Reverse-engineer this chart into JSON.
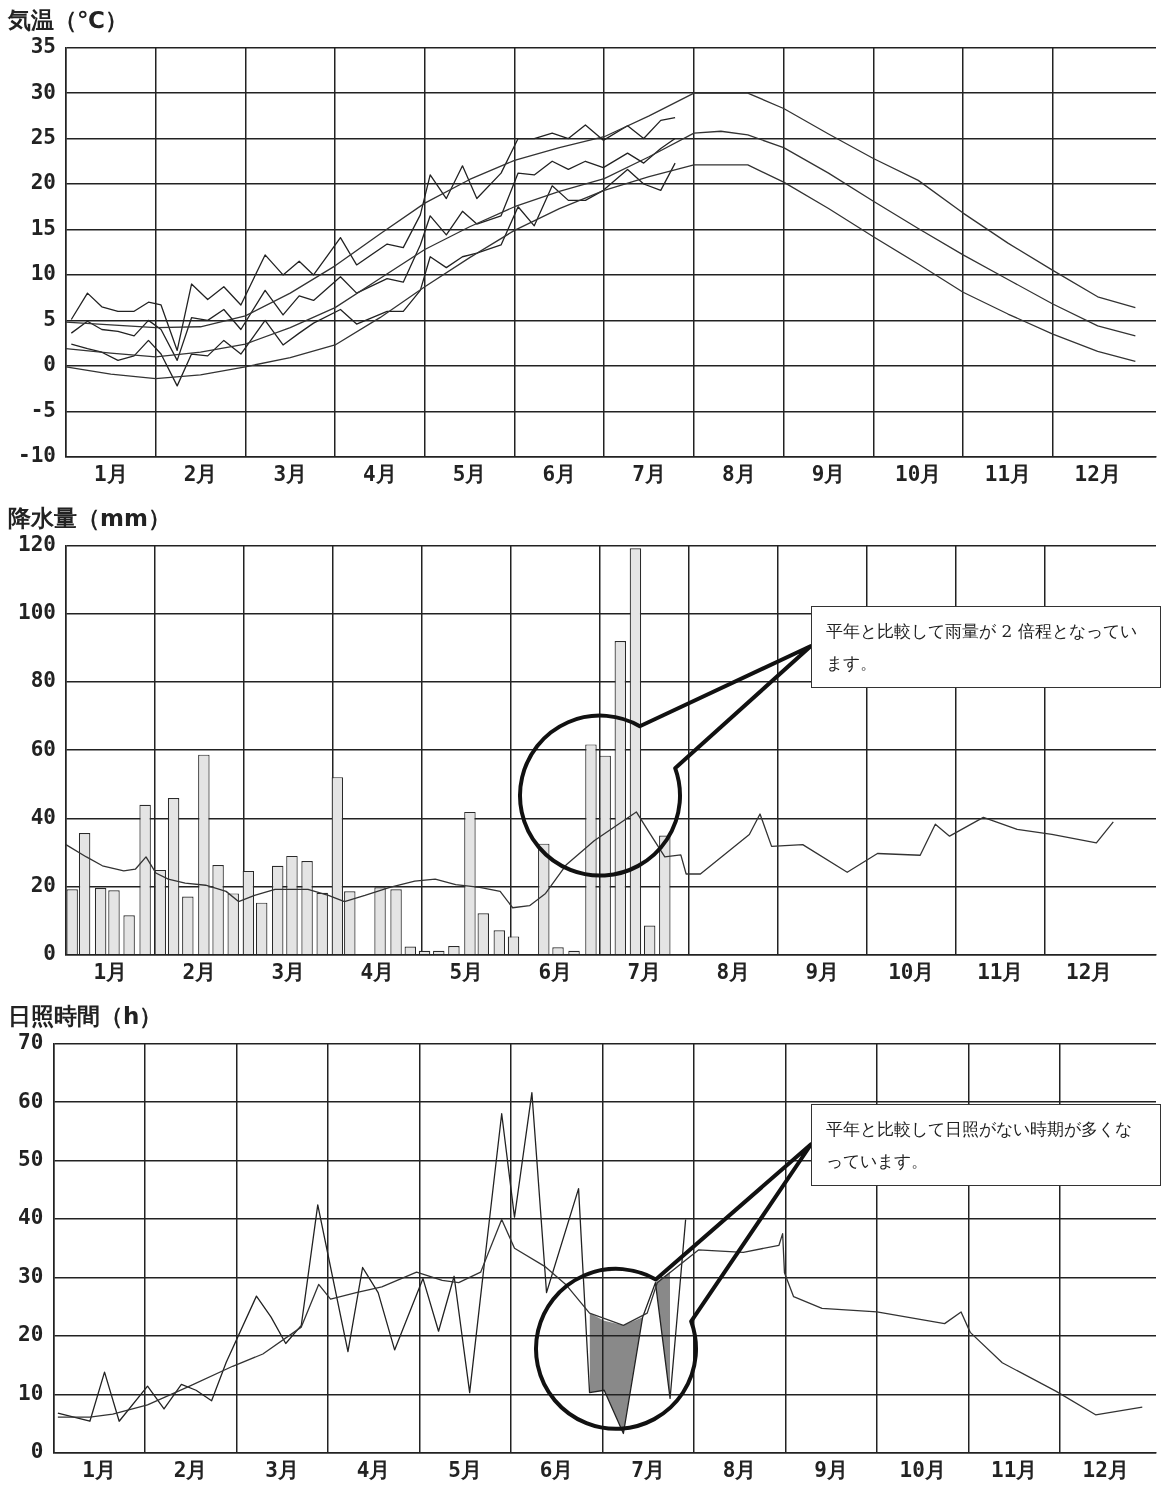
{
  "chart_data": [
    {
      "type": "line",
      "title": "気温（℃）",
      "legend": false,
      "grid": true,
      "marker": "none",
      "xlim": [
        0,
        12.15
      ],
      "xticks": [
        {
          "value": 0,
          "label": null
        },
        {
          "value": 0.5,
          "label": "1月"
        },
        {
          "value": 1,
          "label": null
        },
        {
          "value": 1.5,
          "label": "2月"
        },
        {
          "value": 2,
          "label": null
        },
        {
          "value": 2.5,
          "label": "3月"
        },
        {
          "value": 3,
          "label": null
        },
        {
          "value": 3.5,
          "label": "4月"
        },
        {
          "value": 4,
          "label": null
        },
        {
          "value": 4.5,
          "label": "5月"
        },
        {
          "value": 5,
          "label": null
        },
        {
          "value": 5.5,
          "label": "6月"
        },
        {
          "value": 6,
          "label": null
        },
        {
          "value": 6.5,
          "label": "7月"
        },
        {
          "value": 7,
          "label": null
        },
        {
          "value": 7.5,
          "label": "8月"
        },
        {
          "value": 8,
          "label": null
        },
        {
          "value": 8.5,
          "label": "9月"
        },
        {
          "value": 9,
          "label": null
        },
        {
          "value": 9.5,
          "label": "10月"
        },
        {
          "value": 10,
          "label": null
        },
        {
          "value": 10.5,
          "label": "11月"
        },
        {
          "value": 11,
          "label": null
        },
        {
          "value": 11.5,
          "label": "12月"
        }
      ],
      "ylim": [
        -10,
        35
      ],
      "yticks": [
        -10,
        -5,
        0,
        5,
        10,
        15,
        20,
        25,
        30,
        35
      ],
      "series": [
        {
          "color": "#333333",
          "x": [
            0,
            0.5,
            1,
            1.5,
            2,
            2.5,
            3,
            3.5,
            4,
            4.5,
            5,
            5.5,
            6,
            6.5,
            7,
            7.3,
            7.6,
            8,
            8.5,
            9,
            9.5,
            10,
            10.5,
            11,
            11.5,
            11.92
          ],
          "values": [
            4.8,
            4.5,
            4.2,
            4.3,
            5.5,
            8,
            11,
            14.5,
            17.9,
            20.5,
            22.6,
            24,
            25.2,
            27.5,
            30,
            30,
            30,
            28.3,
            25.5,
            22.8,
            20.4,
            16.8,
            13.5,
            10.5,
            7.6,
            6.4
          ]
        },
        {
          "color": "#333333",
          "x": [
            0,
            0.5,
            1,
            1.5,
            2,
            2.5,
            3,
            3.5,
            4,
            4.5,
            5,
            5.5,
            6,
            6.5,
            7,
            7.3,
            7.6,
            8,
            8.5,
            9,
            9.5,
            10,
            10.5,
            11,
            11.5,
            11.92
          ],
          "values": [
            1.9,
            1.4,
            1.0,
            1.5,
            2.4,
            4.2,
            6.4,
            9.6,
            12.8,
            15.3,
            17.5,
            19.2,
            20.6,
            23,
            25.6,
            25.8,
            25.4,
            24,
            21.2,
            18.1,
            15.1,
            12.2,
            9.5,
            6.8,
            4.4,
            3.3
          ]
        },
        {
          "color": "#333333",
          "x": [
            0,
            0.5,
            1,
            1.5,
            2,
            2.5,
            3,
            3.5,
            4,
            4.5,
            5,
            5.5,
            6,
            6.5,
            7,
            7.3,
            7.6,
            8,
            8.5,
            9,
            9.5,
            10,
            10.5,
            11,
            11.5,
            11.92
          ],
          "values": [
            -0.1,
            -0.9,
            -1.4,
            -1.0,
            -0.1,
            0.9,
            2.3,
            5.3,
            8.7,
            11.9,
            14.9,
            17.3,
            19.3,
            20.8,
            22.1,
            22.1,
            22.1,
            20.2,
            17.3,
            14.2,
            11.2,
            8.1,
            5.7,
            3.5,
            1.6,
            0.5
          ]
        },
        {
          "color": "#222222",
          "x": [
            0.06,
            0.24,
            0.4,
            0.58,
            0.76,
            0.92,
            1.06,
            1.24,
            1.4,
            1.58,
            1.76,
            1.95,
            2.22,
            2.42,
            2.6,
            2.76,
            3.06,
            3.24,
            3.58,
            3.76,
            3.95,
            4.06,
            4.24,
            4.42,
            4.58,
            4.85,
            5.04,
            5.22,
            5.42,
            5.6,
            5.79,
            5.99,
            6.26,
            6.44,
            6.63,
            6.79
          ],
          "values": [
            5.1,
            8.0,
            6.5,
            6.0,
            6.0,
            7.0,
            6.7,
            1.7,
            9.0,
            7.3,
            8.7,
            6.7,
            12.2,
            10.0,
            11.5,
            10.0,
            14.1,
            11.1,
            13.4,
            13.0,
            16.6,
            21.0,
            18.4,
            22.0,
            18.4,
            21.2,
            25.0,
            25.0,
            25.6,
            25.0,
            26.5,
            24.8,
            26.4,
            25.0,
            27.0,
            27.3
          ]
        },
        {
          "color": "#222222",
          "x": [
            0.06,
            0.24,
            0.4,
            0.58,
            0.76,
            0.92,
            1.06,
            1.24,
            1.4,
            1.58,
            1.76,
            1.95,
            2.22,
            2.42,
            2.6,
            2.76,
            3.06,
            3.24,
            3.58,
            3.76,
            3.95,
            4.06,
            4.24,
            4.42,
            4.58,
            4.85,
            5.04,
            5.22,
            5.42,
            5.6,
            5.79,
            5.99,
            6.26,
            6.44,
            6.63,
            6.79
          ],
          "values": [
            3.6,
            4.9,
            4.0,
            3.8,
            3.3,
            5.0,
            4.0,
            0.6,
            5.3,
            5.0,
            6.2,
            4.0,
            8.3,
            5.6,
            7.7,
            7.2,
            9.8,
            8.0,
            9.6,
            9.2,
            13.3,
            16.5,
            14.4,
            17.0,
            15.6,
            16.5,
            21.2,
            21.0,
            22.5,
            21.6,
            22.5,
            21.8,
            23.4,
            22.3,
            23.9,
            25.0
          ]
        },
        {
          "color": "#222222",
          "x": [
            0.06,
            0.24,
            0.4,
            0.58,
            0.76,
            0.92,
            1.06,
            1.24,
            1.4,
            1.58,
            1.76,
            1.95,
            2.22,
            2.42,
            2.6,
            2.76,
            3.06,
            3.24,
            3.58,
            3.76,
            3.95,
            4.06,
            4.24,
            4.42,
            4.58,
            4.85,
            5.04,
            5.22,
            5.42,
            5.6,
            5.79,
            5.99,
            6.26,
            6.44,
            6.63,
            6.79
          ],
          "values": [
            2.4,
            1.9,
            1.5,
            0.6,
            1.1,
            2.8,
            1.3,
            -2.2,
            1.3,
            1.1,
            2.8,
            1.3,
            5.0,
            2.3,
            3.6,
            4.7,
            6.2,
            4.6,
            6.0,
            6.0,
            8.3,
            12.0,
            10.8,
            12.0,
            12.4,
            13.3,
            17.5,
            15.4,
            19.8,
            18.2,
            18.2,
            19.3,
            21.6,
            20.0,
            19.3,
            22.3
          ]
        }
      ]
    },
    {
      "type": "bar",
      "title": "降水量（mm）",
      "legend": false,
      "grid": true,
      "marker": "none",
      "xlim": [
        0,
        12.25
      ],
      "xticks": [
        {
          "value": 0,
          "label": null
        },
        {
          "value": 0.5,
          "label": "1月"
        },
        {
          "value": 1,
          "label": null
        },
        {
          "value": 1.5,
          "label": "2月"
        },
        {
          "value": 2,
          "label": null
        },
        {
          "value": 2.5,
          "label": "3月"
        },
        {
          "value": 3,
          "label": null
        },
        {
          "value": 3.5,
          "label": "4月"
        },
        {
          "value": 4,
          "label": null
        },
        {
          "value": 4.5,
          "label": "5月"
        },
        {
          "value": 5,
          "label": null
        },
        {
          "value": 5.5,
          "label": "6月"
        },
        {
          "value": 6,
          "label": null
        },
        {
          "value": 6.5,
          "label": "7月"
        },
        {
          "value": 7,
          "label": null
        },
        {
          "value": 7.5,
          "label": "8月"
        },
        {
          "value": 8,
          "label": null
        },
        {
          "value": 8.5,
          "label": "9月"
        },
        {
          "value": 9,
          "label": null
        },
        {
          "value": 9.5,
          "label": "10月"
        },
        {
          "value": 10,
          "label": null
        },
        {
          "value": 10.5,
          "label": "11月"
        },
        {
          "value": 11,
          "label": null
        },
        {
          "value": 11.5,
          "label": "12月"
        }
      ],
      "ylim": [
        0,
        120
      ],
      "yticks": [
        0,
        20,
        40,
        60,
        80,
        100,
        120
      ],
      "annotations": [
        "平年と比較して雨量が 2 倍程となっています。"
      ],
      "series": [
        {
          "color": "#e4e4e4",
          "x": [
            0.07,
            0.21,
            0.39,
            0.54,
            0.71,
            0.89,
            1.06,
            1.21,
            1.37,
            1.55,
            1.71,
            1.88,
            2.05,
            2.2,
            2.38,
            2.54,
            2.71,
            2.88,
            3.05,
            3.19,
            3.53,
            3.71,
            3.87,
            4.03,
            4.19,
            4.36,
            4.54,
            4.69,
            4.87,
            5.03,
            5.37,
            5.53,
            5.71,
            5.9,
            6.06,
            6.23,
            6.4,
            6.56,
            6.73
          ],
          "values": [
            19.2,
            35.7,
            19.6,
            18.9,
            11.6,
            44,
            24.9,
            46,
            17.1,
            58.7,
            26.3,
            18,
            24.6,
            15.3,
            26.1,
            29,
            27.5,
            18.2,
            52.1,
            18.6,
            19.8,
            19.2,
            2.4,
            1.2,
            1.2,
            2.6,
            41.9,
            12.2,
            7.2,
            5.4,
            32.6,
            2.2,
            1.2,
            61.7,
            58.4,
            92,
            119.2,
            8.6,
            35
          ]
        },
        {
          "type": "line",
          "color": "#333333",
          "x": [
            0,
            0.23,
            0.41,
            0.65,
            0.78,
            0.9,
            1.01,
            1.15,
            1.34,
            1.57,
            1.8,
            1.94,
            2.12,
            2.35,
            2.72,
            2.95,
            3.13,
            3.36,
            3.64,
            3.92,
            4.15,
            4.38,
            4.65,
            4.88,
            5.02,
            5.21,
            5.39,
            5.62,
            5.94,
            6.41,
            6.54,
            6.73,
            6.91,
            6.97,
            7.13,
            7.68,
            7.8,
            7.93,
            8.28,
            8.78,
            9.12,
            9.6,
            9.77,
            9.93,
            10.31,
            10.69,
            11.08,
            11.58,
            11.77
          ],
          "values": [
            32.3,
            28.7,
            26.1,
            24.6,
            25.1,
            28.7,
            24.0,
            22.2,
            21.0,
            20.4,
            18.6,
            15.6,
            17.4,
            19.2,
            19.2,
            17.4,
            15.6,
            17.4,
            19.8,
            21.6,
            22.2,
            20.6,
            19.8,
            18.6,
            13.8,
            14.4,
            18.0,
            26.3,
            33.5,
            41.9,
            36.5,
            28.7,
            29.3,
            23.7,
            23.7,
            35.3,
            41.3,
            31.8,
            32.3,
            24.2,
            29.7,
            29.2,
            38.3,
            34.8,
            40.3,
            36.8,
            35.3,
            32.8,
            39.0
          ]
        }
      ]
    },
    {
      "type": "line",
      "title": "日照時間（h）",
      "legend": false,
      "grid": true,
      "marker": "none",
      "xlim": [
        0,
        12.05
      ],
      "xticks": [
        {
          "value": 0,
          "label": null
        },
        {
          "value": 0.5,
          "label": "1月"
        },
        {
          "value": 1,
          "label": null
        },
        {
          "value": 1.5,
          "label": "2月"
        },
        {
          "value": 2,
          "label": null
        },
        {
          "value": 2.5,
          "label": "3月"
        },
        {
          "value": 3,
          "label": null
        },
        {
          "value": 3.5,
          "label": "4月"
        },
        {
          "value": 4,
          "label": null
        },
        {
          "value": 4.5,
          "label": "5月"
        },
        {
          "value": 5,
          "label": null
        },
        {
          "value": 5.5,
          "label": "6月"
        },
        {
          "value": 6,
          "label": null
        },
        {
          "value": 6.5,
          "label": "7月"
        },
        {
          "value": 7,
          "label": null
        },
        {
          "value": 7.5,
          "label": "8月"
        },
        {
          "value": 8,
          "label": null
        },
        {
          "value": 8.5,
          "label": "9月"
        },
        {
          "value": 9,
          "label": null
        },
        {
          "value": 9.5,
          "label": "10月"
        },
        {
          "value": 10,
          "label": null
        },
        {
          "value": 10.5,
          "label": "11月"
        },
        {
          "value": 11,
          "label": null
        },
        {
          "value": 11.5,
          "label": "12月"
        }
      ],
      "ylim": [
        0,
        70
      ],
      "yticks": [
        0,
        10,
        20,
        30,
        40,
        50,
        60,
        70
      ],
      "annotations": [
        "平年と比較して日照がない時期が多くなっています。"
      ],
      "series": [
        {
          "color": "#333333",
          "x": [
            0.05,
            0.4,
            0.65,
            1.03,
            1.49,
            1.96,
            2.29,
            2.71,
            2.9,
            3.03,
            3.31,
            3.59,
            3.97,
            4.25,
            4.43,
            4.67,
            4.9,
            5.04,
            5.37,
            5.6,
            5.86,
            6.23,
            6.49,
            6.6,
            7.05,
            7.54,
            7.93,
            7.97,
            7.99,
            8.09,
            8.4,
            9.0,
            9.74,
            9.92,
            10.02,
            10.37,
            10.96,
            11.39,
            11.9
          ],
          "values": [
            6.1,
            6.1,
            6.6,
            8.2,
            11.4,
            14.8,
            16.9,
            21.5,
            28.8,
            26.3,
            27.4,
            28.4,
            30.9,
            29.5,
            29.1,
            30.9,
            39.9,
            35.0,
            31.9,
            28.8,
            23.9,
            21.8,
            23.9,
            29.1,
            34.7,
            34.3,
            35.5,
            37.5,
            30.8,
            26.7,
            24.7,
            24.1,
            22.1,
            24.1,
            20.6,
            15.4,
            10.5,
            6.5,
            7.8
          ]
        },
        {
          "color": "#222222",
          "x": [
            0.05,
            0.4,
            0.56,
            0.72,
            1.03,
            1.21,
            1.4,
            1.56,
            1.73,
            1.89,
            2.22,
            2.38,
            2.54,
            2.71,
            2.89,
            3.22,
            3.38,
            3.55,
            3.73,
            4.04,
            4.21,
            4.38,
            4.55,
            4.71,
            4.9,
            5.04,
            5.23,
            5.39,
            5.74,
            5.86,
            6.02,
            6.23,
            6.44,
            6.58,
            6.74,
            6.91
          ],
          "values": [
            6.8,
            5.4,
            13.8,
            5.4,
            11.4,
            7.5,
            11.7,
            10.7,
            8.9,
            15.5,
            26.8,
            23.2,
            18.7,
            21.8,
            42.4,
            17.3,
            31.7,
            27.4,
            17.6,
            29.8,
            20.8,
            30.2,
            10.3,
            32.3,
            58.0,
            40.3,
            61.6,
            27.4,
            45.2,
            10.3,
            10.7,
            3.3,
            23.2,
            29.1,
            9.3,
            39.9
          ],
          "lower": [
            null,
            null,
            null,
            null,
            null,
            null,
            null,
            null,
            null,
            null,
            null,
            null,
            null,
            null,
            null,
            null,
            null,
            null,
            null,
            null,
            null,
            null,
            null,
            null,
            null,
            null,
            null,
            null,
            null,
            10.3,
            10.7,
            3.3,
            23.2,
            29.1,
            9.3,
            null
          ],
          "upper": [
            null,
            null,
            null,
            null,
            null,
            null,
            null,
            null,
            null,
            null,
            null,
            null,
            null,
            null,
            null,
            null,
            null,
            null,
            null,
            null,
            null,
            null,
            null,
            null,
            null,
            null,
            null,
            null,
            null,
            23.9,
            22.6,
            21.8,
            23.2,
            29.1,
            31.0,
            null
          ]
        }
      ]
    }
  ]
}
